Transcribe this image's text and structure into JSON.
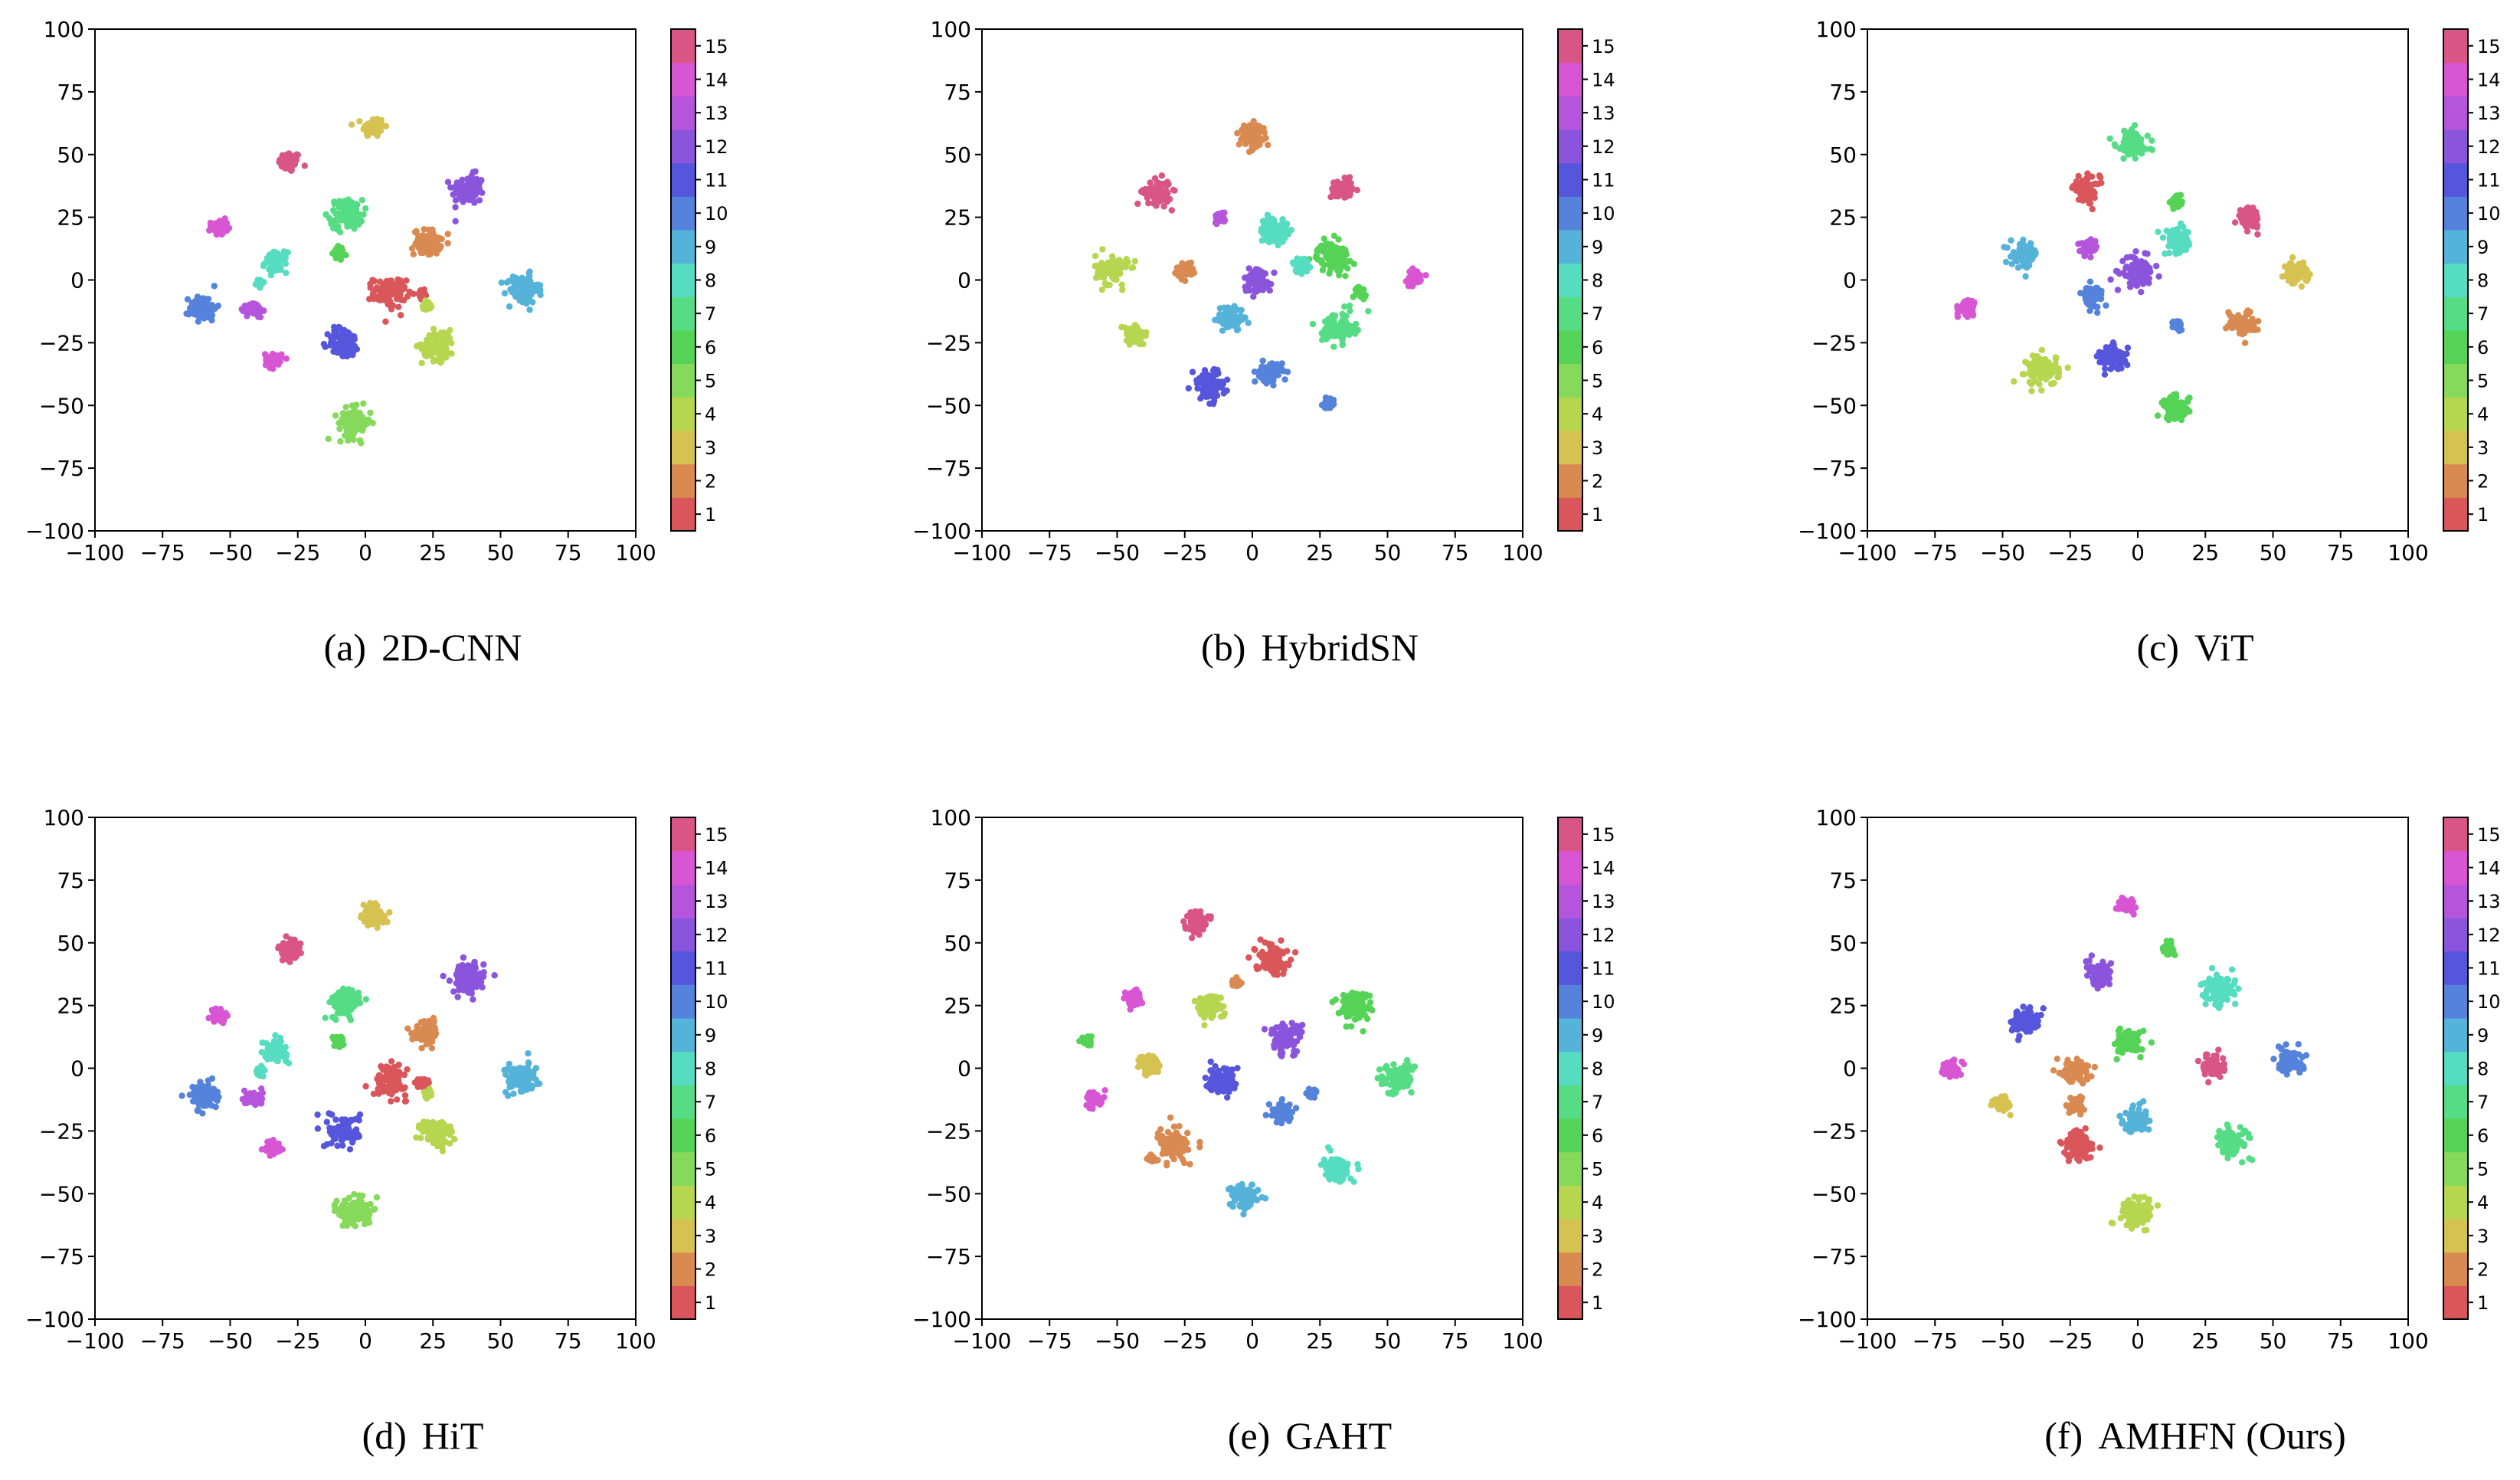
{
  "figure": {
    "layout": "2x3 grid of t-SNE scatter plots"
  },
  "colorbar": {
    "labels": [
      "1",
      "2",
      "3",
      "4",
      "5",
      "6",
      "7",
      "8",
      "9",
      "10",
      "11",
      "12",
      "13",
      "14",
      "15"
    ],
    "colors": [
      "#d9565a",
      "#d98a50",
      "#d5c250",
      "#b7d650",
      "#86d95a",
      "#55d356",
      "#55dc85",
      "#55dcc1",
      "#55b2d9",
      "#5583dc",
      "#5556dc",
      "#8a55dc",
      "#b555dc",
      "#d855d4",
      "#d95586"
    ]
  },
  "chart_data": [
    {
      "type": "scatter",
      "caption_label": "(a)",
      "caption_name": "2D-CNN",
      "xlim": [
        -100,
        100
      ],
      "ylim": [
        -100,
        100
      ],
      "x_ticks": [
        "−100",
        "−75",
        "−50",
        "−25",
        "0",
        "25",
        "50",
        "75",
        "100"
      ],
      "y_ticks": [
        "100",
        "75",
        "50",
        "25",
        "0",
        "−25",
        "−50",
        "−75",
        "−100"
      ],
      "clusters": [
        {
          "class": 15,
          "x": -28,
          "y": 47,
          "r": 4
        },
        {
          "class": 3,
          "x": 3,
          "y": 61,
          "r": 4
        },
        {
          "class": 12,
          "x": 38,
          "y": 36,
          "r": 6
        },
        {
          "class": 14,
          "x": -54,
          "y": 21,
          "r": 3
        },
        {
          "class": 7,
          "x": -7,
          "y": 26,
          "r": 6
        },
        {
          "class": 6,
          "x": -10,
          "y": 11,
          "r": 2
        },
        {
          "class": 8,
          "x": -33,
          "y": 7,
          "r": 4
        },
        {
          "class": 8,
          "x": -39,
          "y": -1,
          "r": 1.5
        },
        {
          "class": 2,
          "x": 23,
          "y": 15,
          "r": 5
        },
        {
          "class": 1,
          "x": 9,
          "y": -5,
          "r": 6
        },
        {
          "class": 1,
          "x": 21,
          "y": -6,
          "r": 2
        },
        {
          "class": 4,
          "x": 23,
          "y": -10,
          "r": 1.5
        },
        {
          "class": 9,
          "x": 58,
          "y": -4,
          "r": 6
        },
        {
          "class": 10,
          "x": -60,
          "y": -11,
          "r": 5
        },
        {
          "class": 13,
          "x": -41,
          "y": -12,
          "r": 3
        },
        {
          "class": 11,
          "x": -8,
          "y": -25,
          "r": 6
        },
        {
          "class": 4,
          "x": 27,
          "y": -26,
          "r": 6
        },
        {
          "class": 14,
          "x": -34,
          "y": -32,
          "r": 3
        },
        {
          "class": 5,
          "x": -4,
          "y": -57,
          "r": 6
        }
      ]
    },
    {
      "type": "scatter",
      "caption_label": "(b)",
      "caption_name": "HybridSN",
      "xlim": [
        -100,
        100
      ],
      "ylim": [
        -100,
        100
      ],
      "x_ticks": [
        "−100",
        "−75",
        "−50",
        "−25",
        "0",
        "25",
        "50",
        "75",
        "100"
      ],
      "y_ticks": [
        "100",
        "75",
        "50",
        "25",
        "0",
        "−25",
        "−50",
        "−75",
        "−100"
      ],
      "clusters": [
        {
          "class": 2,
          "x": 0,
          "y": 57,
          "r": 5
        },
        {
          "class": 15,
          "x": -35,
          "y": 35,
          "r": 5
        },
        {
          "class": 15,
          "x": 33,
          "y": 36,
          "r": 4
        },
        {
          "class": 13,
          "x": -12,
          "y": 25,
          "r": 2
        },
        {
          "class": 8,
          "x": 8,
          "y": 20,
          "r": 5
        },
        {
          "class": 6,
          "x": 30,
          "y": 9,
          "r": 6
        },
        {
          "class": 8,
          "x": 18,
          "y": 6,
          "r": 3
        },
        {
          "class": 4,
          "x": -52,
          "y": 4,
          "r": 6
        },
        {
          "class": 2,
          "x": -25,
          "y": 4,
          "r": 3
        },
        {
          "class": 12,
          "x": 2,
          "y": 0,
          "r": 5
        },
        {
          "class": 14,
          "x": 60,
          "y": 1,
          "r": 3
        },
        {
          "class": 6,
          "x": 40,
          "y": -5,
          "r": 2
        },
        {
          "class": 9,
          "x": -8,
          "y": -15,
          "r": 5
        },
        {
          "class": 7,
          "x": 32,
          "y": -19,
          "r": 6
        },
        {
          "class": 4,
          "x": -44,
          "y": -22,
          "r": 4
        },
        {
          "class": 10,
          "x": 7,
          "y": -37,
          "r": 4
        },
        {
          "class": 11,
          "x": -16,
          "y": -42,
          "r": 6
        },
        {
          "class": 10,
          "x": 28,
          "y": -49,
          "r": 2
        }
      ]
    },
    {
      "type": "scatter",
      "caption_label": "(c)",
      "caption_name": "ViT",
      "xlim": [
        -100,
        100
      ],
      "ylim": [
        -100,
        100
      ],
      "x_ticks": [
        "−100",
        "−75",
        "−50",
        "−25",
        "0",
        "25",
        "50",
        "75",
        "100"
      ],
      "y_ticks": [
        "100",
        "75",
        "50",
        "25",
        "0",
        "−25",
        "−50",
        "−75",
        "−100"
      ],
      "clusters": [
        {
          "class": 7,
          "x": -2,
          "y": 54,
          "r": 6
        },
        {
          "class": 1,
          "x": -19,
          "y": 36,
          "r": 5
        },
        {
          "class": 6,
          "x": 14,
          "y": 31,
          "r": 2
        },
        {
          "class": 15,
          "x": 41,
          "y": 25,
          "r": 4
        },
        {
          "class": 8,
          "x": 15,
          "y": 15,
          "r": 5
        },
        {
          "class": 13,
          "x": -18,
          "y": 13,
          "r": 3
        },
        {
          "class": 9,
          "x": -42,
          "y": 10,
          "r": 5
        },
        {
          "class": 12,
          "x": 0,
          "y": 3,
          "r": 6
        },
        {
          "class": 3,
          "x": 59,
          "y": 3,
          "r": 4
        },
        {
          "class": 10,
          "x": -17,
          "y": -6,
          "r": 4
        },
        {
          "class": 14,
          "x": -63,
          "y": -11,
          "r": 3
        },
        {
          "class": 2,
          "x": 38,
          "y": -17,
          "r": 5
        },
        {
          "class": 10,
          "x": 15,
          "y": -18,
          "r": 2
        },
        {
          "class": 11,
          "x": -9,
          "y": -31,
          "r": 5
        },
        {
          "class": 4,
          "x": -35,
          "y": -36,
          "r": 6
        },
        {
          "class": 6,
          "x": 14,
          "y": -51,
          "r": 5
        }
      ]
    },
    {
      "type": "scatter",
      "caption_label": "(d)",
      "caption_name": "HiT",
      "xlim": [
        -100,
        100
      ],
      "ylim": [
        -100,
        100
      ],
      "x_ticks": [
        "−100",
        "−75",
        "−50",
        "−25",
        "0",
        "25",
        "50",
        "75",
        "100"
      ],
      "y_ticks": [
        "100",
        "75",
        "50",
        "25",
        "0",
        "−25",
        "−50",
        "−75",
        "−100"
      ],
      "clusters": [
        {
          "class": 15,
          "x": -28,
          "y": 47,
          "r": 4
        },
        {
          "class": 3,
          "x": 3,
          "y": 61,
          "r": 4
        },
        {
          "class": 12,
          "x": 38,
          "y": 36,
          "r": 6
        },
        {
          "class": 14,
          "x": -54,
          "y": 21,
          "r": 3
        },
        {
          "class": 7,
          "x": -7,
          "y": 26,
          "r": 6
        },
        {
          "class": 6,
          "x": -10,
          "y": 11,
          "r": 2
        },
        {
          "class": 8,
          "x": -33,
          "y": 7,
          "r": 4
        },
        {
          "class": 8,
          "x": -39,
          "y": -1,
          "r": 1.5
        },
        {
          "class": 2,
          "x": 23,
          "y": 15,
          "r": 5
        },
        {
          "class": 1,
          "x": 9,
          "y": -5,
          "r": 6
        },
        {
          "class": 1,
          "x": 21,
          "y": -6,
          "r": 2
        },
        {
          "class": 4,
          "x": 23,
          "y": -10,
          "r": 1.5
        },
        {
          "class": 9,
          "x": 58,
          "y": -4,
          "r": 6
        },
        {
          "class": 10,
          "x": -60,
          "y": -11,
          "r": 5
        },
        {
          "class": 13,
          "x": -41,
          "y": -12,
          "r": 3
        },
        {
          "class": 11,
          "x": -8,
          "y": -25,
          "r": 6
        },
        {
          "class": 4,
          "x": 27,
          "y": -26,
          "r": 6
        },
        {
          "class": 14,
          "x": -34,
          "y": -32,
          "r": 3
        },
        {
          "class": 5,
          "x": -4,
          "y": -57,
          "r": 6
        }
      ]
    },
    {
      "type": "scatter",
      "caption_label": "(e)",
      "caption_name": "GAHT",
      "xlim": [
        -100,
        100
      ],
      "ylim": [
        -100,
        100
      ],
      "x_ticks": [
        "−100",
        "−75",
        "−50",
        "−25",
        "0",
        "25",
        "50",
        "75",
        "100"
      ],
      "y_ticks": [
        "100",
        "75",
        "50",
        "25",
        "0",
        "−25",
        "−50",
        "−75",
        "−100"
      ],
      "clusters": [
        {
          "class": 15,
          "x": -21,
          "y": 59,
          "r": 4
        },
        {
          "class": 1,
          "x": 7,
          "y": 44,
          "r": 6
        },
        {
          "class": 2,
          "x": -6,
          "y": 34,
          "r": 1.5
        },
        {
          "class": 14,
          "x": -44,
          "y": 28,
          "r": 3
        },
        {
          "class": 4,
          "x": -16,
          "y": 25,
          "r": 5
        },
        {
          "class": 6,
          "x": 38,
          "y": 25,
          "r": 6
        },
        {
          "class": 12,
          "x": 12,
          "y": 12,
          "r": 6
        },
        {
          "class": 6,
          "x": -61,
          "y": 11,
          "r": 2
        },
        {
          "class": 3,
          "x": -38,
          "y": 1,
          "r": 4
        },
        {
          "class": 7,
          "x": 53,
          "y": -4,
          "r": 6
        },
        {
          "class": 11,
          "x": -11,
          "y": -5,
          "r": 6
        },
        {
          "class": 14,
          "x": -58,
          "y": -12,
          "r": 3
        },
        {
          "class": 10,
          "x": 22,
          "y": -10,
          "r": 2
        },
        {
          "class": 10,
          "x": 11,
          "y": -18,
          "r": 4
        },
        {
          "class": 2,
          "x": -29,
          "y": -31,
          "r": 6
        },
        {
          "class": 2,
          "x": -37,
          "y": -36,
          "r": 1.5
        },
        {
          "class": 8,
          "x": 31,
          "y": -40,
          "r": 5
        },
        {
          "class": 9,
          "x": -3,
          "y": -51,
          "r": 5
        }
      ]
    },
    {
      "type": "scatter",
      "caption_label": "(f)",
      "caption_name": "AMHFN (Ours)",
      "xlim": [
        -100,
        100
      ],
      "ylim": [
        -100,
        100
      ],
      "x_ticks": [
        "−100",
        "−75",
        "−50",
        "−25",
        "0",
        "25",
        "50",
        "75",
        "100"
      ],
      "y_ticks": [
        "100",
        "75",
        "50",
        "25",
        "0",
        "−25",
        "−50",
        "−75",
        "−100"
      ],
      "clusters": [
        {
          "class": 14,
          "x": -4,
          "y": 65,
          "r": 3
        },
        {
          "class": 6,
          "x": 11,
          "y": 48,
          "r": 2
        },
        {
          "class": 12,
          "x": -14,
          "y": 37,
          "r": 5
        },
        {
          "class": 8,
          "x": 30,
          "y": 31,
          "r": 6
        },
        {
          "class": 11,
          "x": -42,
          "y": 19,
          "r": 5
        },
        {
          "class": 6,
          "x": -3,
          "y": 10,
          "r": 5
        },
        {
          "class": 14,
          "x": -69,
          "y": 0,
          "r": 3
        },
        {
          "class": 2,
          "x": -23,
          "y": -1,
          "r": 5
        },
        {
          "class": 15,
          "x": 28,
          "y": 1,
          "r": 4
        },
        {
          "class": 10,
          "x": 56,
          "y": 3,
          "r": 5
        },
        {
          "class": 3,
          "x": -50,
          "y": -14,
          "r": 3
        },
        {
          "class": 2,
          "x": -23,
          "y": -15,
          "r": 3
        },
        {
          "class": 9,
          "x": 0,
          "y": -20,
          "r": 5
        },
        {
          "class": 7,
          "x": 35,
          "y": -29,
          "r": 6
        },
        {
          "class": 1,
          "x": -22,
          "y": -31,
          "r": 6
        },
        {
          "class": 4,
          "x": 0,
          "y": -57,
          "r": 6
        }
      ]
    }
  ]
}
